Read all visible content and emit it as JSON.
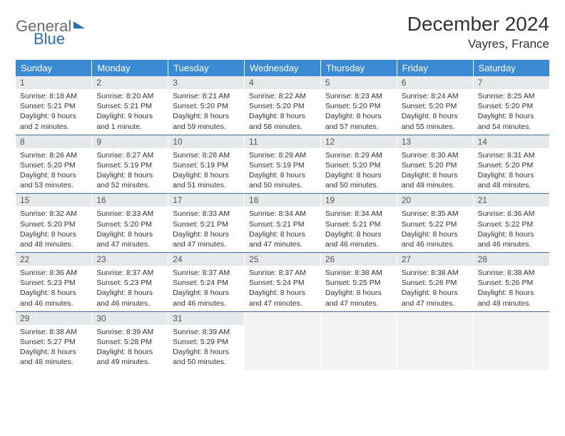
{
  "brand": {
    "part1": "General",
    "part2": "Blue"
  },
  "title": "December 2024",
  "location": "Vayres, France",
  "colors": {
    "header_bg": "#3b8bd4",
    "row_border": "#3b6fa0",
    "daynum_bg": "#e7e8e9",
    "empty_bg": "#f3f3f3",
    "logo_blue": "#2a6fb5",
    "logo_grey": "#6b6b6b"
  },
  "weekdays": [
    "Sunday",
    "Monday",
    "Tuesday",
    "Wednesday",
    "Thursday",
    "Friday",
    "Saturday"
  ],
  "rows": [
    [
      {
        "n": "1",
        "sr": "8:18 AM",
        "ss": "5:21 PM",
        "dl": "9 hours and 2 minutes."
      },
      {
        "n": "2",
        "sr": "8:20 AM",
        "ss": "5:21 PM",
        "dl": "9 hours and 1 minute."
      },
      {
        "n": "3",
        "sr": "8:21 AM",
        "ss": "5:20 PM",
        "dl": "8 hours and 59 minutes."
      },
      {
        "n": "4",
        "sr": "8:22 AM",
        "ss": "5:20 PM",
        "dl": "8 hours and 58 minutes."
      },
      {
        "n": "5",
        "sr": "8:23 AM",
        "ss": "5:20 PM",
        "dl": "8 hours and 57 minutes."
      },
      {
        "n": "6",
        "sr": "8:24 AM",
        "ss": "5:20 PM",
        "dl": "8 hours and 55 minutes."
      },
      {
        "n": "7",
        "sr": "8:25 AM",
        "ss": "5:20 PM",
        "dl": "8 hours and 54 minutes."
      }
    ],
    [
      {
        "n": "8",
        "sr": "8:26 AM",
        "ss": "5:20 PM",
        "dl": "8 hours and 53 minutes."
      },
      {
        "n": "9",
        "sr": "8:27 AM",
        "ss": "5:19 PM",
        "dl": "8 hours and 52 minutes."
      },
      {
        "n": "10",
        "sr": "8:28 AM",
        "ss": "5:19 PM",
        "dl": "8 hours and 51 minutes."
      },
      {
        "n": "11",
        "sr": "8:29 AM",
        "ss": "5:19 PM",
        "dl": "8 hours and 50 minutes."
      },
      {
        "n": "12",
        "sr": "8:29 AM",
        "ss": "5:20 PM",
        "dl": "8 hours and 50 minutes."
      },
      {
        "n": "13",
        "sr": "8:30 AM",
        "ss": "5:20 PM",
        "dl": "8 hours and 49 minutes."
      },
      {
        "n": "14",
        "sr": "8:31 AM",
        "ss": "5:20 PM",
        "dl": "8 hours and 48 minutes."
      }
    ],
    [
      {
        "n": "15",
        "sr": "8:32 AM",
        "ss": "5:20 PM",
        "dl": "8 hours and 48 minutes."
      },
      {
        "n": "16",
        "sr": "8:33 AM",
        "ss": "5:20 PM",
        "dl": "8 hours and 47 minutes."
      },
      {
        "n": "17",
        "sr": "8:33 AM",
        "ss": "5:21 PM",
        "dl": "8 hours and 47 minutes."
      },
      {
        "n": "18",
        "sr": "8:34 AM",
        "ss": "5:21 PM",
        "dl": "8 hours and 47 minutes."
      },
      {
        "n": "19",
        "sr": "8:34 AM",
        "ss": "5:21 PM",
        "dl": "8 hours and 46 minutes."
      },
      {
        "n": "20",
        "sr": "8:35 AM",
        "ss": "5:22 PM",
        "dl": "8 hours and 46 minutes."
      },
      {
        "n": "21",
        "sr": "8:36 AM",
        "ss": "5:22 PM",
        "dl": "8 hours and 46 minutes."
      }
    ],
    [
      {
        "n": "22",
        "sr": "8:36 AM",
        "ss": "5:23 PM",
        "dl": "8 hours and 46 minutes."
      },
      {
        "n": "23",
        "sr": "8:37 AM",
        "ss": "5:23 PM",
        "dl": "8 hours and 46 minutes."
      },
      {
        "n": "24",
        "sr": "8:37 AM",
        "ss": "5:24 PM",
        "dl": "8 hours and 46 minutes."
      },
      {
        "n": "25",
        "sr": "8:37 AM",
        "ss": "5:24 PM",
        "dl": "8 hours and 47 minutes."
      },
      {
        "n": "26",
        "sr": "8:38 AM",
        "ss": "5:25 PM",
        "dl": "8 hours and 47 minutes."
      },
      {
        "n": "27",
        "sr": "8:38 AM",
        "ss": "5:26 PM",
        "dl": "8 hours and 47 minutes."
      },
      {
        "n": "28",
        "sr": "8:38 AM",
        "ss": "5:26 PM",
        "dl": "8 hours and 48 minutes."
      }
    ],
    [
      {
        "n": "29",
        "sr": "8:38 AM",
        "ss": "5:27 PM",
        "dl": "8 hours and 48 minutes."
      },
      {
        "n": "30",
        "sr": "8:39 AM",
        "ss": "5:28 PM",
        "dl": "8 hours and 49 minutes."
      },
      {
        "n": "31",
        "sr": "8:39 AM",
        "ss": "5:29 PM",
        "dl": "8 hours and 50 minutes."
      },
      null,
      null,
      null,
      null
    ]
  ],
  "labels": {
    "sunrise": "Sunrise:",
    "sunset": "Sunset:",
    "daylight": "Daylight:"
  }
}
